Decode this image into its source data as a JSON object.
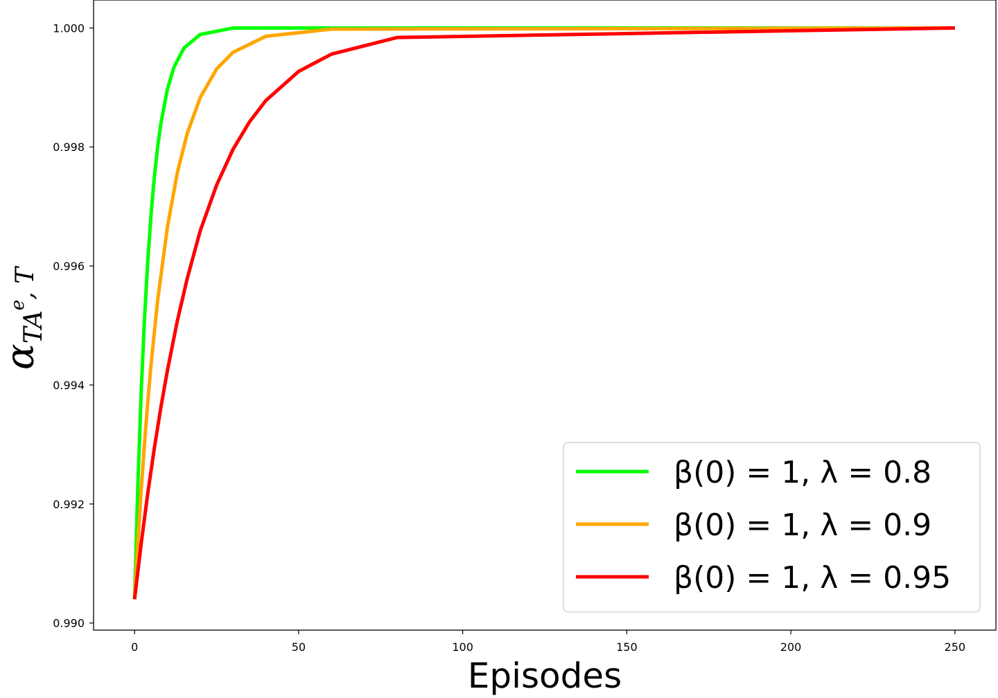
{
  "chart_data": {
    "type": "line",
    "xlabel": "Episodes",
    "ylabel": {
      "base": "α",
      "sub": "TA",
      "sup": "e",
      "sub_tail": ", T"
    },
    "xlim": [
      -12.5,
      262.5
    ],
    "ylim": [
      0.98988,
      1.00047
    ],
    "x_ticks": [
      0,
      50,
      100,
      150,
      200,
      250
    ],
    "x_tick_labels": [
      "0",
      "50",
      "100",
      "150",
      "200",
      "250"
    ],
    "y_ticks": [
      0.99,
      0.992,
      0.994,
      0.996,
      0.998,
      1.0
    ],
    "y_tick_labels": [
      "0.990",
      "0.992",
      "0.994",
      "0.996",
      "0.998",
      "1.000"
    ],
    "grid": false,
    "legend_position": "bottom-right",
    "series": [
      {
        "name": "β(0) = 1, λ = 0.8",
        "color": "#00ff00",
        "x": [
          0,
          1,
          2,
          3,
          4,
          5,
          6,
          7,
          8,
          10,
          12,
          15,
          20,
          30,
          50,
          250
        ],
        "y": [
          0.9904,
          0.99232,
          0.99386,
          0.99509,
          0.99607,
          0.99685,
          0.99748,
          0.99799,
          0.99839,
          0.99897,
          0.99934,
          0.99966,
          0.99989,
          0.999999,
          1.0,
          1.0
        ]
      },
      {
        "name": "β(0) = 1, λ = 0.9",
        "color": "#ffa500",
        "x": [
          0,
          1,
          2,
          3,
          4,
          5,
          7,
          10,
          13,
          16,
          20,
          25,
          30,
          40,
          60,
          250
        ],
        "y": [
          0.9904,
          0.99136,
          0.99222,
          0.993,
          0.9937,
          0.99433,
          0.99541,
          0.99665,
          0.99756,
          0.99822,
          0.99883,
          0.99931,
          0.99959,
          0.99986,
          0.99998,
          1.0
        ]
      },
      {
        "name": "β(0) = 1, λ = 0.95",
        "color": "#ff0000",
        "x": [
          0,
          2,
          4,
          6,
          8,
          10,
          13,
          16,
          20,
          25,
          30,
          35,
          40,
          50,
          60,
          80,
          250
        ],
        "y": [
          0.9904,
          0.99133,
          0.99217,
          0.99293,
          0.99362,
          0.99424,
          0.99507,
          0.99578,
          0.99659,
          0.99736,
          0.99796,
          0.99842,
          0.99878,
          0.99927,
          0.99956,
          0.99984,
          1.0
        ]
      }
    ]
  }
}
